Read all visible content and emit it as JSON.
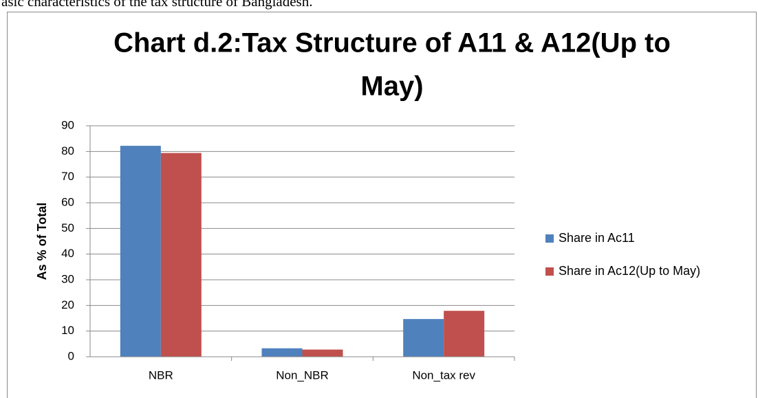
{
  "context_text": "asic characteristics of the tax structure of Bangladesh.",
  "chart_data": {
    "type": "bar",
    "title_lines": [
      "Chart d.2:Tax Structure of A11 & A12(Up to",
      "May)"
    ],
    "y_label": "As % of Total",
    "categories": [
      "NBR",
      "Non_NBR",
      "Non_tax rev"
    ],
    "series": [
      {
        "name": "Share in Ac11",
        "color": "#4f81bd",
        "values": [
          82.2,
          3.3,
          14.7
        ]
      },
      {
        "name": "Share in Ac12(Up to May)",
        "color": "#c0504d",
        "values": [
          79.4,
          2.8,
          17.9
        ]
      }
    ],
    "ylim": [
      0,
      90
    ],
    "yticks": [
      0,
      10,
      20,
      30,
      40,
      50,
      60,
      70,
      80,
      90
    ],
    "grid": true,
    "legend": "right"
  }
}
